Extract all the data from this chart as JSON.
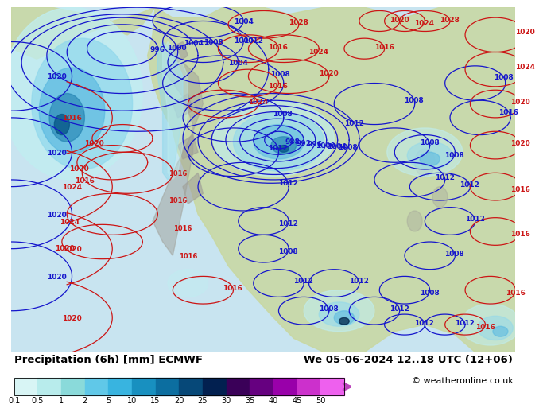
{
  "title_left": "Precipitation (6h) [mm] ECMWF",
  "title_right": "We 05-06-2024 12..18 UTC (12+06)",
  "copyright": "© weatheronline.co.uk",
  "colorbar_ticks": [
    "0.1",
    "0.5",
    "1",
    "2",
    "5",
    "10",
    "15",
    "20",
    "25",
    "30",
    "35",
    "40",
    "45",
    "50"
  ],
  "colorbar_colors": [
    "#d8f5f5",
    "#b8ecec",
    "#8adada",
    "#60c8e8",
    "#38b4e0",
    "#1890c0",
    "#0c6ea0",
    "#064878",
    "#022050",
    "#3a0058",
    "#660080",
    "#9900aa",
    "#cc30cc",
    "#ee60ee"
  ],
  "ocean_color": "#c8e4f0",
  "land_color": "#c8d8a0",
  "gray_color": "#a0a098",
  "bg_bottom": "#ffffff",
  "blue_contour": "#1515cc",
  "red_contour": "#cc1515",
  "precip_light1": "#c0eef0",
  "precip_light2": "#90d8ec",
  "precip_med1": "#58b8e0",
  "precip_med2": "#2080b0",
  "precip_dark1": "#085888",
  "precip_dark2": "#03284a",
  "arrow_color": "#bb44bb",
  "font_size_title": 9.5,
  "font_size_tick": 8,
  "font_size_label": 6.5
}
